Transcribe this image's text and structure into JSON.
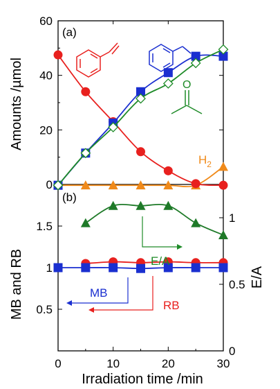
{
  "chart_data": [
    {
      "panel": "(a)",
      "type": "line",
      "ylabel": "Amounts /µmol",
      "ylim": [
        0,
        60
      ],
      "yticks": [
        "0",
        "20",
        "40",
        "60"
      ],
      "xlim": [
        0,
        30
      ],
      "series": [
        {
          "name": "styrene",
          "color": "#e8201e",
          "marker": "circle",
          "x": [
            0,
            5,
            10,
            15,
            20,
            25,
            30
          ],
          "y": [
            47.5,
            34,
            23,
            12,
            5,
            0.3,
            -0.3
          ]
        },
        {
          "name": "ethylbenzene",
          "color": "#1a2fd0",
          "marker": "square",
          "x": [
            0,
            5,
            10,
            15,
            20,
            25,
            30
          ],
          "y": [
            -0.3,
            11.5,
            22.5,
            34,
            41,
            47,
            47
          ]
        },
        {
          "name": "acetone",
          "color": "#1e8b28",
          "marker": "diamond-open",
          "x": [
            0,
            5,
            10,
            15,
            20,
            25,
            30
          ],
          "y": [
            -0.3,
            11.5,
            21,
            31.5,
            37,
            44.5,
            49.5
          ]
        },
        {
          "name": "H2",
          "color": "#f08a1a",
          "marker": "triangle",
          "x": [
            0,
            5,
            10,
            15,
            20,
            25,
            30
          ],
          "y": [
            -0.3,
            -0.3,
            -0.3,
            -0.3,
            -0.3,
            -0.3,
            6.5
          ]
        }
      ],
      "labels": {
        "h2": "H",
        "h2_sub": "2"
      }
    },
    {
      "panel": "(b)",
      "type": "line",
      "ylabel": "MB and RB",
      "ylim": [
        0,
        2
      ],
      "yticks": [
        "0.5",
        "1",
        "1.5"
      ],
      "y2label": "E/A",
      "y2lim": [
        0,
        1.25
      ],
      "y2ticks": [
        "0",
        "0.5",
        "1"
      ],
      "xlabel": "Irradiation time /min",
      "xticks": [
        "0",
        "10",
        "20",
        "30"
      ],
      "series": [
        {
          "name": "MB",
          "color": "#1a2fd0",
          "marker": "square",
          "axis": "left",
          "x": [
            0,
            5,
            10,
            15,
            20,
            25,
            30
          ],
          "y": [
            1.0,
            1.0,
            1.0,
            0.99,
            1.0,
            1.0,
            1.0
          ]
        },
        {
          "name": "RB",
          "color": "#e8201e",
          "marker": "circle",
          "axis": "left",
          "x": [
            5,
            10,
            15,
            20,
            25,
            30
          ],
          "y": [
            1.05,
            1.07,
            1.06,
            1.07,
            1.06,
            1.06
          ]
        },
        {
          "name": "E/A",
          "color": "#1e7a28",
          "marker": "triangle",
          "axis": "right",
          "x": [
            5,
            10,
            15,
            20,
            25,
            30
          ],
          "y": [
            0.96,
            1.09,
            1.09,
            1.09,
            0.96,
            0.87
          ]
        }
      ]
    }
  ],
  "legend_colors": {
    "ethylbenzene": "#1a2fd0",
    "styrene": "#e8201e",
    "acetone": "#1e8b28"
  },
  "structure_text": {
    "acetone_o": "O"
  }
}
